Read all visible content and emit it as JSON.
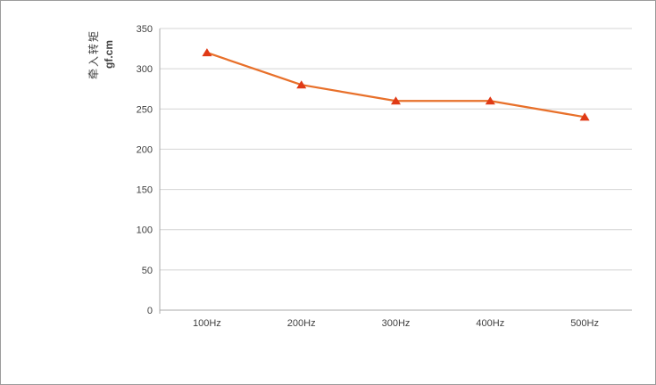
{
  "chart_data": {
    "type": "line",
    "title": "",
    "categories": [
      "100Hz",
      "200Hz",
      "300Hz",
      "400Hz",
      "500Hz"
    ],
    "values": [
      320,
      280,
      260,
      260,
      240
    ],
    "xlabel": "",
    "ylabel": "牵入转矩",
    "ylabel_units": "gf.cm",
    "ylim": [
      0,
      350
    ],
    "yticks": [
      0,
      50,
      100,
      150,
      200,
      250,
      300,
      350
    ],
    "grid": "horizontal",
    "legend": "none",
    "marker": "triangle-up",
    "colors": {
      "line": "#E8702A",
      "marker": "#E03A16",
      "gridline": "#D4D4D4",
      "axis": "#ABABAB",
      "tick_text": "#3F3F3F",
      "frame_border": "#9C9C9C",
      "background": "#FFFFFF"
    }
  }
}
